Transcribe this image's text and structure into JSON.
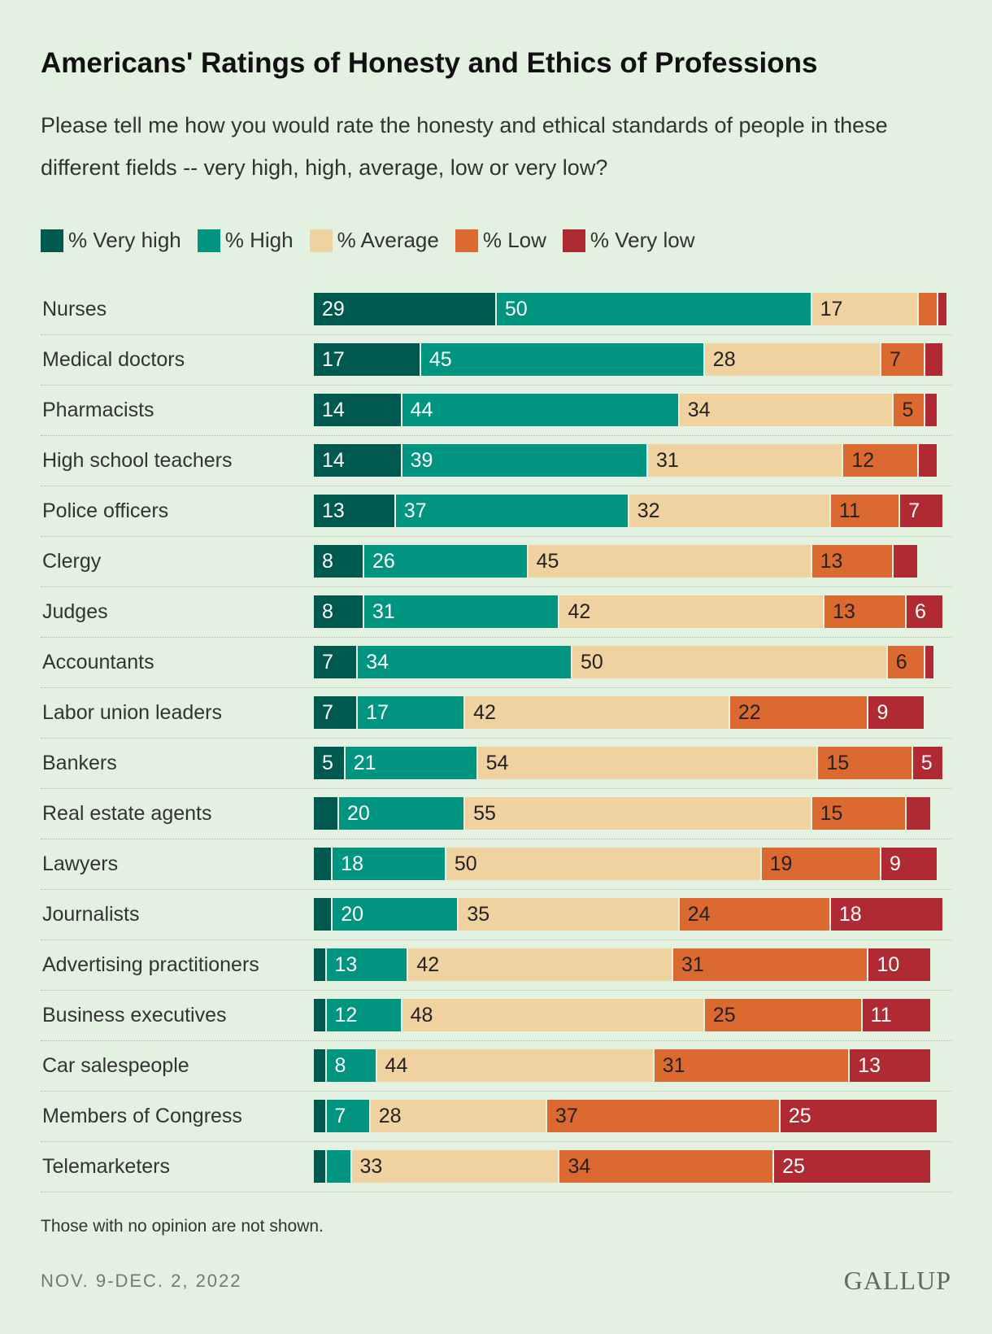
{
  "title": "Americans' Ratings of Honesty and Ethics of Professions",
  "subtitle": "Please tell me how you would rate the honesty and ethical standards of people in these different fields -- very high, high, average, low or very low?",
  "note": "Those with no opinion are not shown.",
  "date": "NOV. 9-DEC. 2, 2022",
  "logo": "GALLUP",
  "chart_data": {
    "type": "bar",
    "orientation": "horizontal",
    "stacked": true,
    "legend_position": "top",
    "xlim": [
      0,
      100
    ],
    "categories": [
      "Nurses",
      "Medical doctors",
      "Pharmacists",
      "High school teachers",
      "Police officers",
      "Clergy",
      "Judges",
      "Accountants",
      "Labor union leaders",
      "Bankers",
      "Real estate agents",
      "Lawyers",
      "Journalists",
      "Advertising practitioners",
      "Business executives",
      "Car salespeople",
      "Members of Congress",
      "Telemarketers"
    ],
    "series": [
      {
        "name": "% Very high",
        "color": "#00594f",
        "text_color": "#ffffff",
        "values": [
          29,
          17,
          14,
          14,
          13,
          8,
          8,
          7,
          7,
          5,
          4,
          3,
          3,
          2,
          2,
          2,
          2,
          2
        ]
      },
      {
        "name": "% High",
        "color": "#009481",
        "text_color": "#ffffff",
        "values": [
          50,
          45,
          44,
          39,
          37,
          26,
          31,
          34,
          17,
          21,
          20,
          18,
          20,
          13,
          12,
          8,
          7,
          4
        ]
      },
      {
        "name": "% Average",
        "color": "#f0d2a0",
        "text_color": "#222222",
        "values": [
          17,
          28,
          34,
          31,
          32,
          45,
          42,
          50,
          42,
          54,
          55,
          50,
          35,
          42,
          48,
          44,
          28,
          33
        ]
      },
      {
        "name": "% Low",
        "color": "#dc6a30",
        "text_color": "#222222",
        "values": [
          3,
          7,
          5,
          12,
          11,
          13,
          13,
          6,
          22,
          15,
          15,
          19,
          24,
          31,
          25,
          31,
          37,
          34
        ]
      },
      {
        "name": "% Very low",
        "color": "#b02a33",
        "text_color": "#ffffff",
        "values": [
          1,
          3,
          2,
          3,
          7,
          4,
          6,
          1,
          9,
          5,
          4,
          9,
          18,
          10,
          11,
          13,
          25,
          25
        ]
      }
    ],
    "label_min": 5
  }
}
